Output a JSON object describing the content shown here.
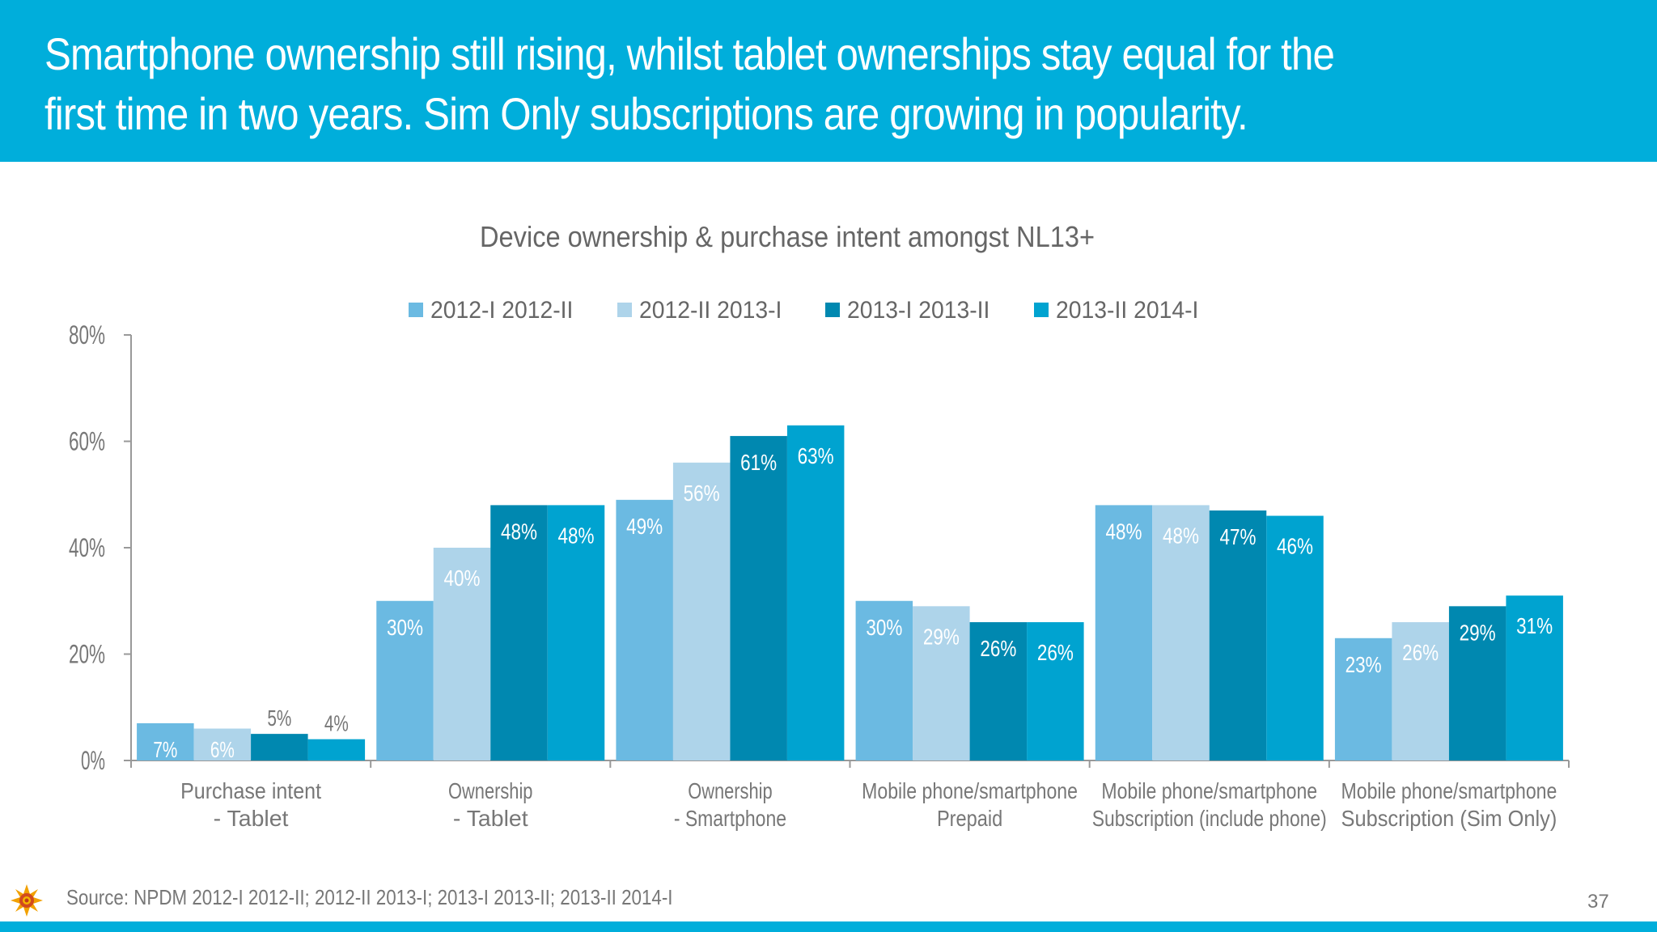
{
  "header": {
    "headline": "Smartphone ownership still rising, whilst tablet ownerships stay equal for the\nfirst time in two years. Sim Only subscriptions are growing in popularity."
  },
  "footer": {
    "source": "Source: NPDM 2012-I 2012-II; 2012-II 2013-I; 2013-I 2013-II; 2013-II 2014-I",
    "page_number": "37",
    "logo_icon": "sun-logo-icon"
  },
  "colors": {
    "header": "#00AEDB",
    "series": [
      "#6BBAE2",
      "#AED4EA",
      "#0088B0",
      "#00A3D0"
    ]
  },
  "chart_data": {
    "type": "bar",
    "title": "Device ownership & purchase intent amongst NL13+",
    "categories": [
      [
        "Purchase intent",
        "- Tablet"
      ],
      [
        "Ownership",
        "- Tablet"
      ],
      [
        "Ownership",
        "- Smartphone"
      ],
      [
        "Mobile phone/smartphone",
        "Prepaid"
      ],
      [
        "Mobile phone/smartphone",
        "Subscription (include phone)"
      ],
      [
        "Mobile phone/smartphone",
        "Subscription (Sim Only)"
      ]
    ],
    "series": [
      {
        "name": "2012-I 2012-II",
        "values": [
          7,
          30,
          49,
          30,
          48,
          23
        ]
      },
      {
        "name": "2012-II 2013-I",
        "values": [
          6,
          40,
          56,
          29,
          48,
          26
        ]
      },
      {
        "name": "2013-I 2013-II",
        "values": [
          5,
          48,
          61,
          26,
          47,
          29
        ]
      },
      {
        "name": "2013-II 2014-I",
        "values": [
          4,
          48,
          63,
          26,
          46,
          31
        ]
      }
    ],
    "ylim": [
      0,
      80
    ],
    "yticks": [
      "0%",
      "20%",
      "40%",
      "60%",
      "80%"
    ],
    "value_suffix": "%",
    "legend": "top",
    "grid": false
  }
}
